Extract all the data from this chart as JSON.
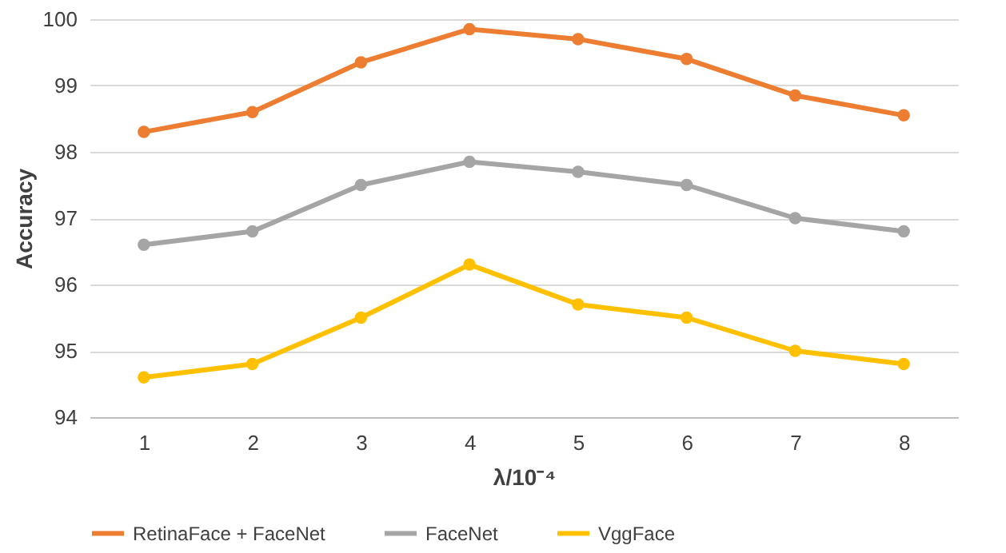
{
  "chart_data": {
    "type": "line",
    "xlabel": "λ/10⁻⁴",
    "ylabel": "Accuracy",
    "categories": [
      "1",
      "2",
      "3",
      "4",
      "5",
      "6",
      "7",
      "8"
    ],
    "ylim": [
      94,
      100
    ],
    "yticks": [
      94,
      95,
      96,
      97,
      98,
      99,
      100
    ],
    "grid": "y",
    "legend": "bottom",
    "marker": "circle",
    "line_style": "solid",
    "series": [
      {
        "name": "RetinaFace + FaceNet",
        "color": "#ed7d31",
        "values": [
          98.3,
          98.6,
          99.35,
          99.85,
          99.7,
          99.4,
          98.85,
          98.55
        ]
      },
      {
        "name": "FaceNet",
        "color": "#a5a5a5",
        "values": [
          96.6,
          96.8,
          97.5,
          97.85,
          97.7,
          97.5,
          97.0,
          96.8
        ]
      },
      {
        "name": "VggFace",
        "color": "#ffc000",
        "values": [
          94.6,
          94.8,
          95.5,
          96.3,
          95.7,
          95.5,
          95.0,
          94.8
        ]
      }
    ]
  }
}
